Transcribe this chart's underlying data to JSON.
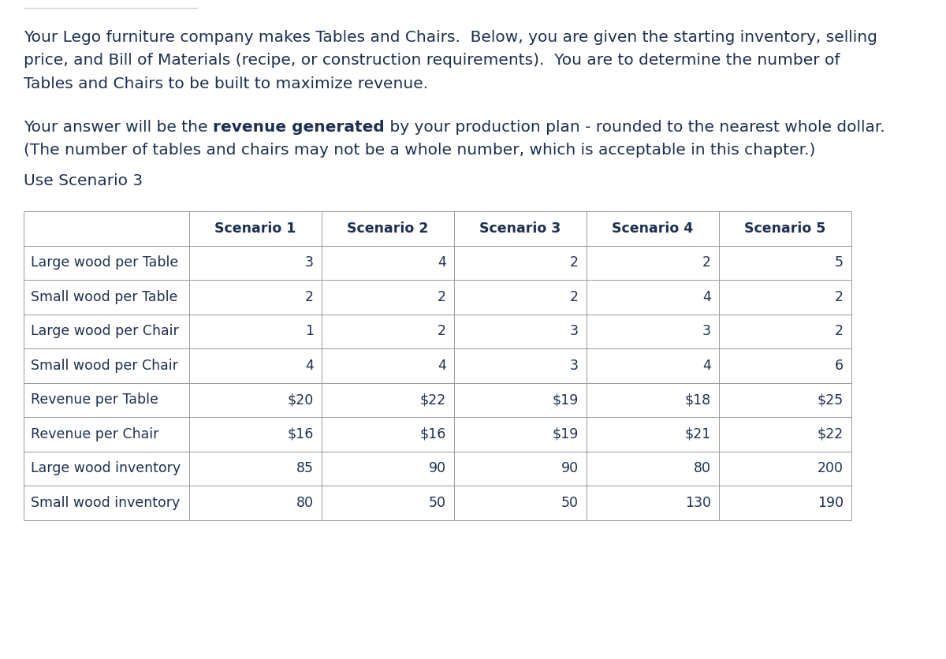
{
  "para1_lines": [
    "Your Lego furniture company makes Tables and Chairs.  Below, you are given the starting inventory, selling",
    "price, and Bill of Materials (recipe, or construction requirements).  You are to determine the number of",
    "Tables and Chairs to be built to maximize revenue."
  ],
  "para2_part1": "Your answer will be the ",
  "para2_bold": "revenue generated",
  "para2_part2": " by your production plan - rounded to the nearest whole dollar.",
  "para2_line2": "(The number of tables and chairs may not be a whole number, which is acceptable in this chapter.)",
  "para3": "Use Scenario 3",
  "col_headers": [
    "",
    "Scenario 1",
    "Scenario 2",
    "Scenario 3",
    "Scenario 4",
    "Scenario 5"
  ],
  "row_labels": [
    "Large wood per Table",
    "Small wood per Table",
    "Large wood per Chair",
    "Small wood per Chair",
    "Revenue per Table",
    "Revenue per Chair",
    "Large wood inventory",
    "Small wood inventory"
  ],
  "table_data": [
    [
      "3",
      "4",
      "2",
      "2",
      "5"
    ],
    [
      "2",
      "2",
      "2",
      "4",
      "2"
    ],
    [
      "1",
      "2",
      "3",
      "3",
      "2"
    ],
    [
      "4",
      "4",
      "3",
      "4",
      "6"
    ],
    [
      "$20",
      "$22",
      "$19",
      "$18",
      "$25"
    ],
    [
      "$16",
      "$16",
      "$19",
      "$21",
      "$22"
    ],
    [
      "85",
      "90",
      "90",
      "80",
      "200"
    ],
    [
      "80",
      "50",
      "50",
      "130",
      "190"
    ]
  ],
  "text_color": "#1c3050",
  "border_color": "#999999",
  "bg_color": "#ffffff",
  "header_font_size": 12.5,
  "body_font_size": 12.5,
  "para_font_size": 14.5,
  "fig_width": 12.0,
  "fig_height": 8.36
}
